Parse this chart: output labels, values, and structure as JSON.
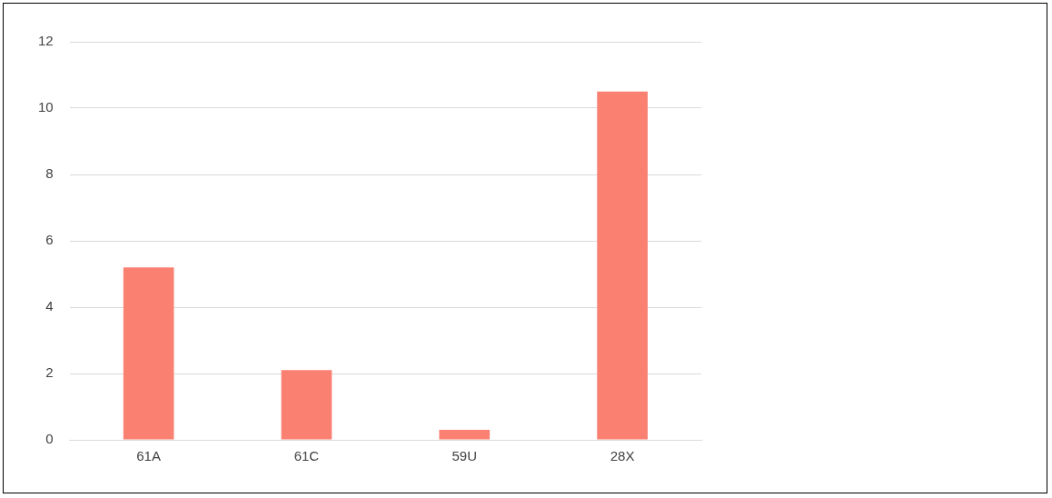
{
  "chart_data": {
    "type": "bar",
    "categories": [
      "61A",
      "61C",
      "59U",
      "28X"
    ],
    "values": [
      5.2,
      2.1,
      0.3,
      10.5
    ],
    "color": "#fa8072",
    "ylim": [
      0,
      12
    ],
    "yticks": [
      0,
      2,
      4,
      6,
      8,
      10,
      12
    ],
    "grid": "y"
  }
}
